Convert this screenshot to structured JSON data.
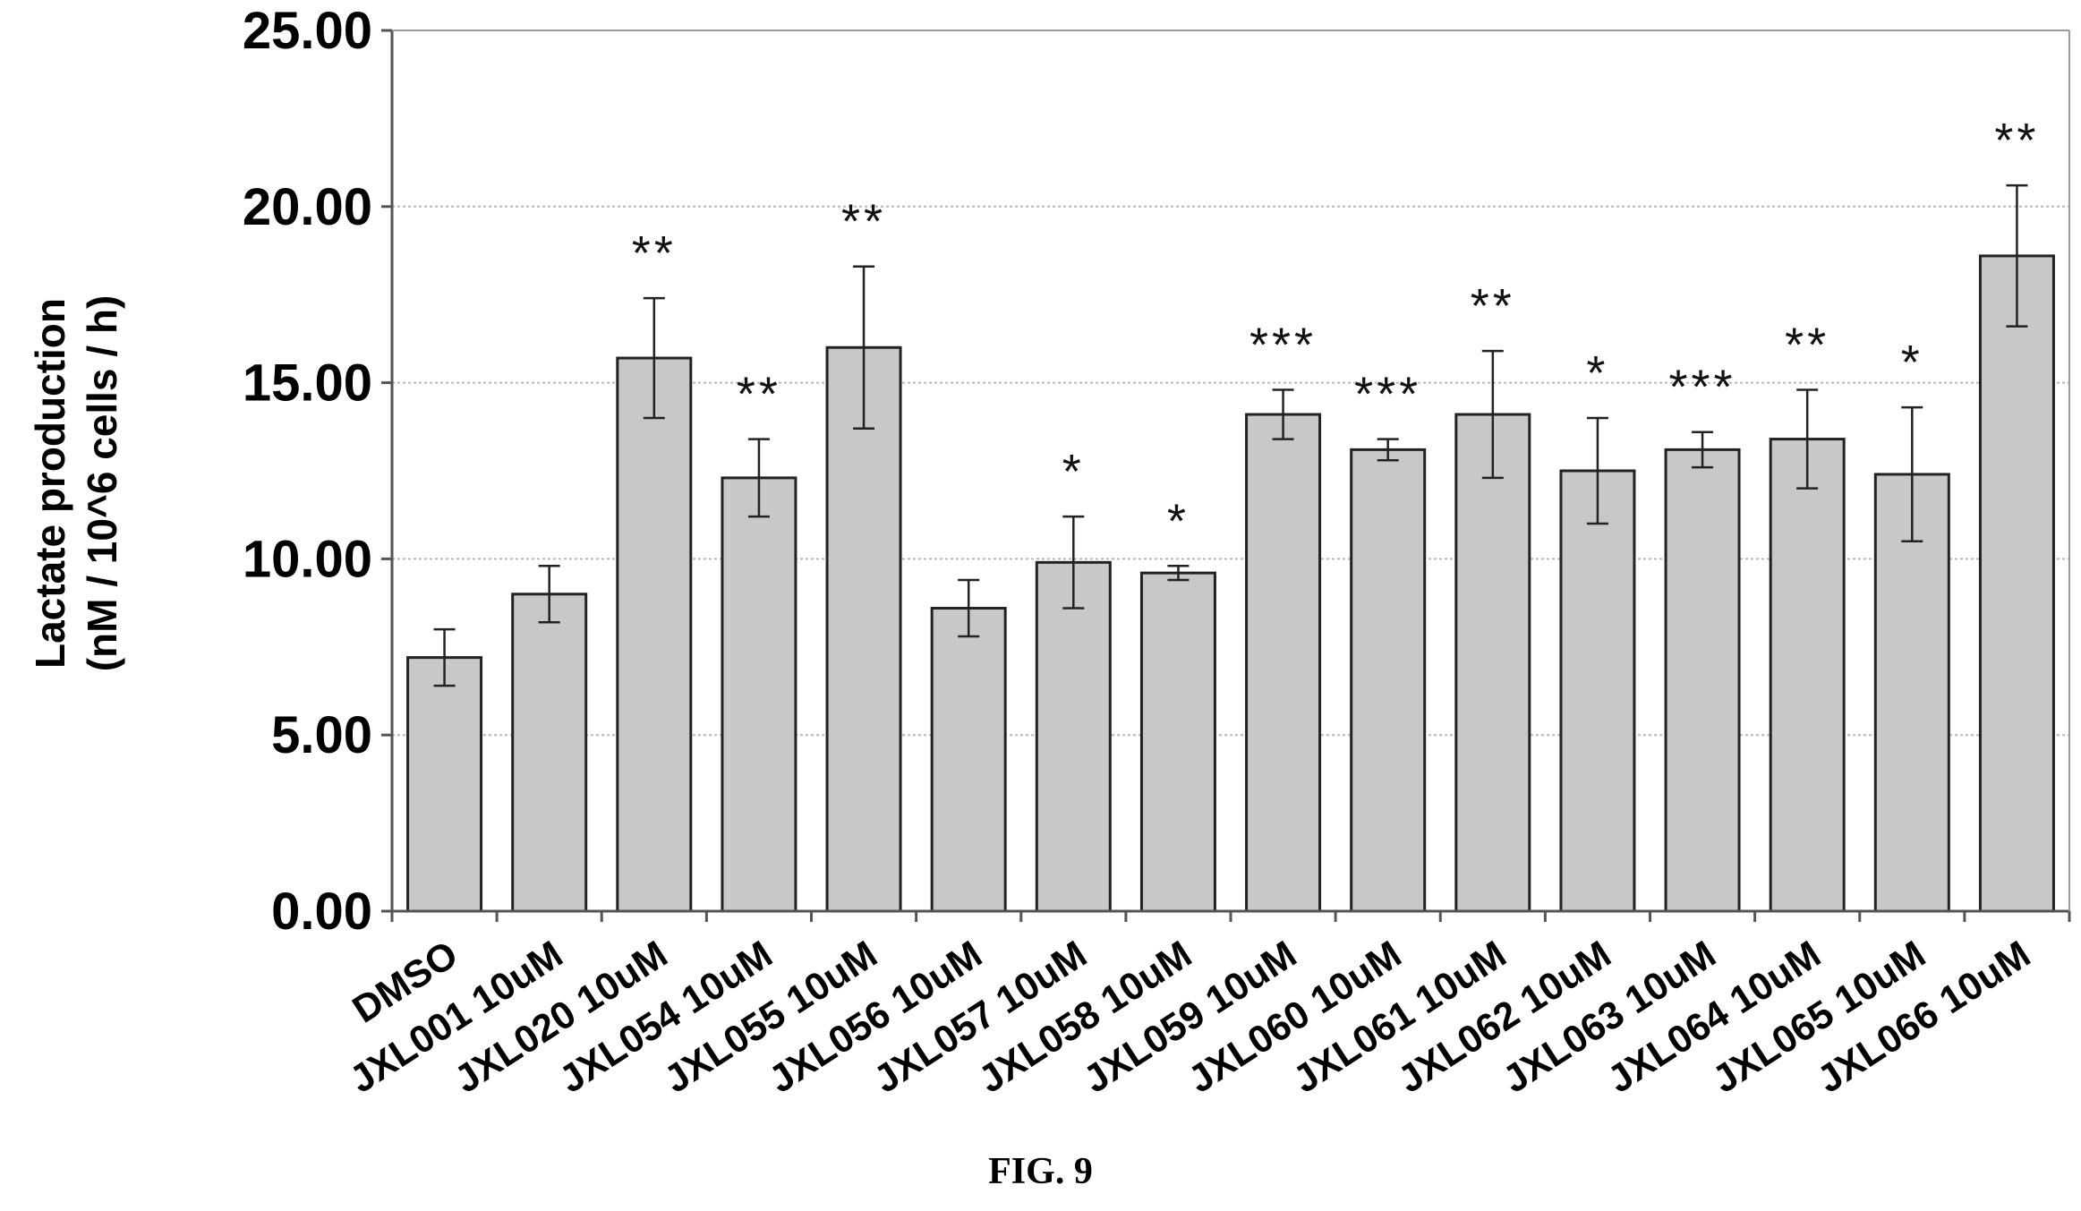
{
  "figure_caption": "FIG. 9",
  "chart_data": {
    "type": "bar",
    "ylabel_lines": [
      "Lactate production",
      "(nM / 10^6 cells / h)"
    ],
    "xlabel": "",
    "ylim": [
      0,
      25
    ],
    "yticks": [
      "0.00",
      "5.00",
      "10.00",
      "15.00",
      "20.00",
      "25.00"
    ],
    "grid": true,
    "categories": [
      "DMSO",
      "JXL001 10uM",
      "JXL020 10uM",
      "JXL054 10uM",
      "JXL055 10uM",
      "JXL056 10uM",
      "JXL057 10uM",
      "JXL058 10uM",
      "JXL059 10uM",
      "JXL060 10uM",
      "JXL061 10uM",
      "JXL062 10uM",
      "JXL063 10uM",
      "JXL064 10uM",
      "JXL065 10uM",
      "JXL066 10uM"
    ],
    "values": [
      7.2,
      9.0,
      15.7,
      12.3,
      16.0,
      8.6,
      9.9,
      9.6,
      14.1,
      13.1,
      14.1,
      12.5,
      13.1,
      13.4,
      12.4,
      18.6
    ],
    "errors": [
      0.8,
      0.8,
      1.7,
      1.1,
      2.3,
      0.8,
      1.3,
      0.2,
      0.7,
      0.3,
      1.8,
      1.5,
      0.5,
      1.4,
      1.9,
      2.0
    ],
    "significance": [
      "",
      "",
      "**",
      "**",
      "**",
      "",
      "*",
      "*",
      "***",
      "***",
      "**",
      "*",
      "***",
      "**",
      "*",
      "**"
    ],
    "bar_color": "#c8c8c8"
  }
}
